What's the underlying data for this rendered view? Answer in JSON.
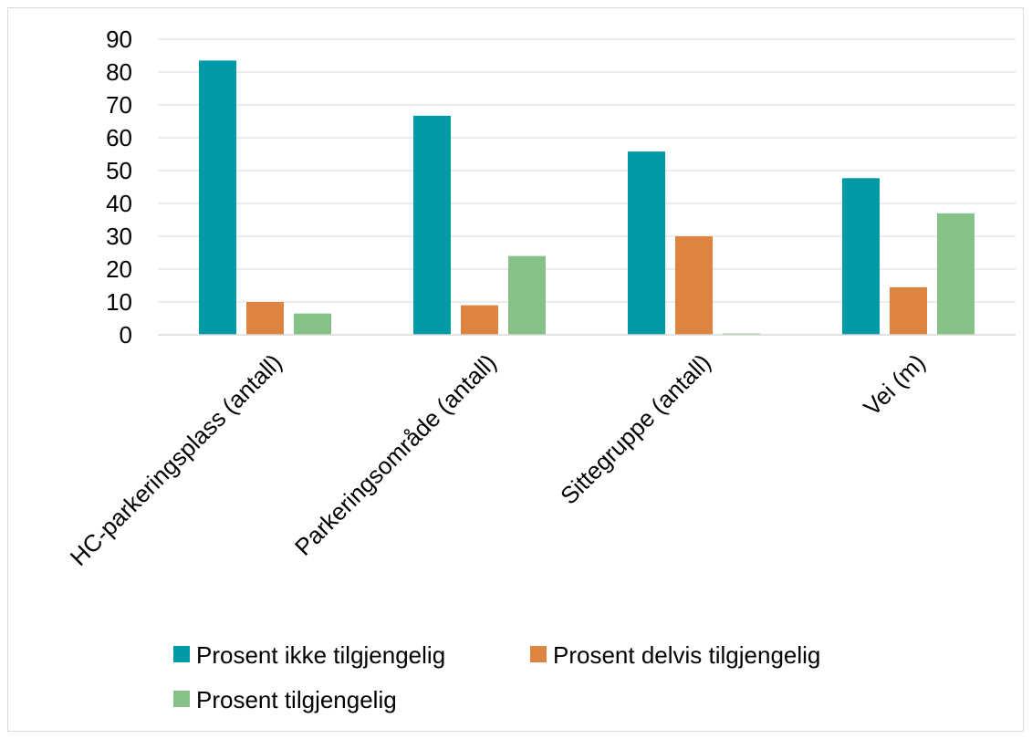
{
  "chart_data": {
    "type": "bar",
    "title": "",
    "xlabel": "",
    "ylabel": "",
    "categories": [
      "HC-parkeringsplass (antall)",
      "Parkeringsområde (antall)",
      "Sittegruppe (antall)",
      "Vei (m)"
    ],
    "series": [
      {
        "name": "Prosent ikke tilgjengelig",
        "color": "#009aa6",
        "values": [
          83.5,
          66.7,
          55.8,
          47.7
        ]
      },
      {
        "name": "Prosent delvis tilgjengelig",
        "color": "#dd8440",
        "values": [
          10,
          9,
          30,
          14.5
        ]
      },
      {
        "name": "Prosent tilgjengelig",
        "color": "#86c187",
        "values": [
          6.5,
          24,
          0.4,
          37
        ]
      }
    ],
    "ylim": [
      0,
      90
    ],
    "yticks": [
      0,
      10,
      20,
      30,
      40,
      50,
      60,
      70,
      80,
      90
    ],
    "grid": true,
    "legend": "bottom"
  }
}
